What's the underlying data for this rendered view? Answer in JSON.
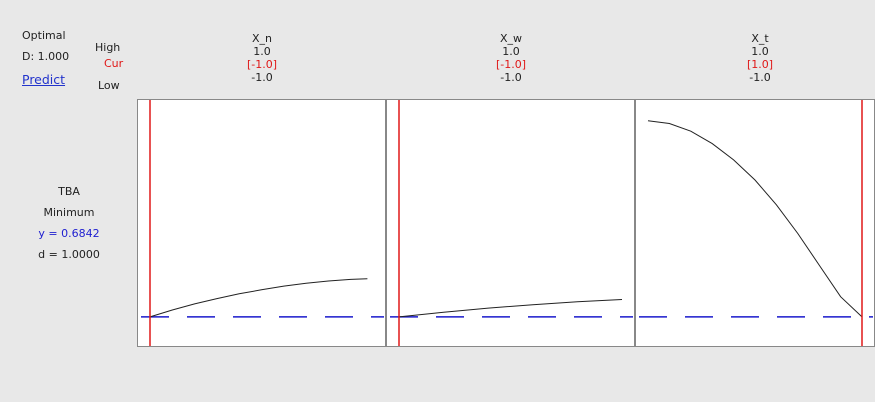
{
  "optimization": {
    "title": "Optimal",
    "d_value": "D: 1.000",
    "predict_link": "Predict"
  },
  "row_labels": {
    "high": "High",
    "cur": "Cur",
    "low": "Low"
  },
  "factors": [
    {
      "name": "X_n",
      "high": "1.0",
      "cur": "[-1.0]",
      "low": "-1.0",
      "cur_value": -1.0
    },
    {
      "name": "X_w",
      "high": "1.0",
      "cur": "[-1.0]",
      "low": "-1.0",
      "cur_value": -1.0
    },
    {
      "name": "X_t",
      "high": "1.0",
      "cur": "[1.0]",
      "low": "-1.0",
      "cur_value": 1.0
    }
  ],
  "response": {
    "name": "TBA",
    "goal": "Minimum",
    "y_text": "y = 0.6842",
    "d_text": "d = 1.0000"
  },
  "colors": {
    "current_line": "#e01818",
    "reference_line": "#1a1acc",
    "curve": "#222222",
    "panel_bg": "#ffffff",
    "panel_border": "#888888",
    "page_bg": "#e8e8e8"
  },
  "chart_data": {
    "type": "line",
    "y_range": [
      0.6,
      1.75
    ],
    "reference_y": 0.6842,
    "series": [
      {
        "factor": "X_n",
        "x": [
          -1.0,
          -0.8,
          -0.6,
          -0.4,
          -0.2,
          0.0,
          0.2,
          0.4,
          0.6,
          0.8,
          0.95
        ],
        "y": [
          0.684,
          0.72,
          0.752,
          0.78,
          0.805,
          0.826,
          0.845,
          0.86,
          0.872,
          0.88,
          0.884
        ]
      },
      {
        "factor": "X_w",
        "x": [
          -1.0,
          -0.6,
          -0.2,
          0.2,
          0.6,
          1.0
        ],
        "y": [
          0.684,
          0.708,
          0.73,
          0.748,
          0.763,
          0.775
        ]
      },
      {
        "factor": "X_t",
        "x": [
          -1.0,
          -0.8,
          -0.6,
          -0.4,
          -0.2,
          0.0,
          0.2,
          0.4,
          0.6,
          0.8,
          1.0
        ],
        "y": [
          1.71,
          1.695,
          1.655,
          1.59,
          1.505,
          1.4,
          1.27,
          1.12,
          0.955,
          0.79,
          0.684
        ]
      }
    ]
  }
}
